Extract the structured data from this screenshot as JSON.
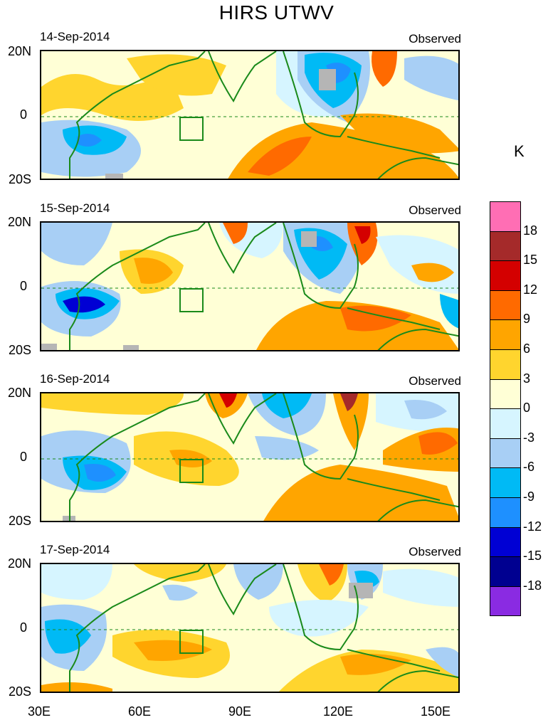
{
  "title": "HIRS UTWV",
  "panels": [
    {
      "date": "14-Sep-2014",
      "label": "Observed"
    },
    {
      "date": "15-Sep-2014",
      "label": "Observed"
    },
    {
      "date": "16-Sep-2014",
      "label": "Observed"
    },
    {
      "date": "17-Sep-2014",
      "label": "Observed"
    }
  ],
  "lat_labels": [
    "20N",
    "0",
    "20S"
  ],
  "lon_labels": [
    "30E",
    "60E",
    "90E",
    "120E",
    "150E"
  ],
  "colorbar": {
    "unit": "K",
    "labels": [
      "18",
      "15",
      "12",
      "9",
      "6",
      "3",
      "0",
      "-3",
      "-6",
      "-9",
      "-12",
      "-15",
      "-18"
    ],
    "colors": [
      "#ff6eb4",
      "#a52a2a",
      "#d40000",
      "#ff6a00",
      "#ffa500",
      "#ffd52e",
      "#ffffd6",
      "#d6f5ff",
      "#a8cff5",
      "#00baf5",
      "#1e90ff",
      "#0000d4",
      "#000090",
      "#8a2be2"
    ]
  },
  "colors": {
    "coast": "#1a8a1a",
    "missing": "#b5b5b5",
    "equator": "#1a8a1a"
  }
}
